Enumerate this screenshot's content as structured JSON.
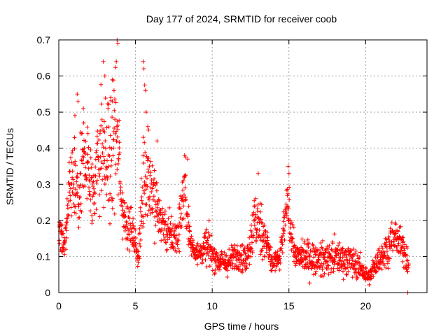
{
  "chart_data": {
    "type": "scatter",
    "title": "Day 177 of 2024, SRMTID for receiver coob",
    "xlabel": "GPS time / hours",
    "ylabel": "SRMTID / TECUs",
    "xlim": [
      0,
      24
    ],
    "ylim": [
      0,
      0.7
    ],
    "xticks": [
      0,
      5,
      10,
      15,
      20
    ],
    "yticks": [
      0,
      0.1,
      0.2,
      0.3,
      0.4,
      0.5,
      0.6,
      0.7
    ],
    "grid": true,
    "marker": "+",
    "series": [
      {
        "name": "SRMTID",
        "color": "#ff0000",
        "profile": [
          [
            0.0,
            0.18,
            0.06
          ],
          [
            0.4,
            0.13,
            0.05
          ],
          [
            0.8,
            0.32,
            0.1
          ],
          [
            1.3,
            0.25,
            0.1
          ],
          [
            1.7,
            0.4,
            0.12
          ],
          [
            2.2,
            0.27,
            0.1
          ],
          [
            2.7,
            0.4,
            0.15
          ],
          [
            3.3,
            0.35,
            0.15
          ],
          [
            3.7,
            0.45,
            0.18
          ],
          [
            4.2,
            0.22,
            0.06
          ],
          [
            4.7,
            0.18,
            0.05
          ],
          [
            5.2,
            0.1,
            0.04
          ],
          [
            5.6,
            0.35,
            0.15
          ],
          [
            6.0,
            0.3,
            0.1
          ],
          [
            6.5,
            0.22,
            0.08
          ],
          [
            7.0,
            0.17,
            0.05
          ],
          [
            7.7,
            0.15,
            0.05
          ],
          [
            8.2,
            0.3,
            0.08
          ],
          [
            8.6,
            0.13,
            0.04
          ],
          [
            9.2,
            0.11,
            0.03
          ],
          [
            9.7,
            0.13,
            0.05
          ],
          [
            10.3,
            0.09,
            0.03
          ],
          [
            11.0,
            0.08,
            0.03
          ],
          [
            11.7,
            0.11,
            0.04
          ],
          [
            12.2,
            0.09,
            0.03
          ],
          [
            12.8,
            0.2,
            0.08
          ],
          [
            13.4,
            0.16,
            0.06
          ],
          [
            13.9,
            0.08,
            0.03
          ],
          [
            14.4,
            0.09,
            0.03
          ],
          [
            14.9,
            0.25,
            0.06
          ],
          [
            15.4,
            0.1,
            0.03
          ],
          [
            16.0,
            0.1,
            0.04
          ],
          [
            17.0,
            0.09,
            0.04
          ],
          [
            18.0,
            0.1,
            0.04
          ],
          [
            19.0,
            0.09,
            0.04
          ],
          [
            19.6,
            0.07,
            0.03
          ],
          [
            20.2,
            0.04,
            0.02
          ],
          [
            20.8,
            0.09,
            0.03
          ],
          [
            21.4,
            0.12,
            0.04
          ],
          [
            21.9,
            0.16,
            0.04
          ],
          [
            22.4,
            0.12,
            0.04
          ],
          [
            22.8,
            0.09,
            0.04
          ]
        ],
        "highlights": [
          [
            1.2,
            0.55
          ],
          [
            1.25,
            0.53
          ],
          [
            1.6,
            0.51
          ],
          [
            1.05,
            0.49
          ],
          [
            2.9,
            0.64
          ],
          [
            3.0,
            0.6
          ],
          [
            3.5,
            0.59
          ],
          [
            3.8,
            0.7
          ],
          [
            3.85,
            0.69
          ],
          [
            3.75,
            0.64
          ],
          [
            3.6,
            0.56
          ],
          [
            5.5,
            0.64
          ],
          [
            5.55,
            0.62
          ],
          [
            5.6,
            0.575
          ],
          [
            5.65,
            0.56
          ],
          [
            5.7,
            0.5
          ],
          [
            5.8,
            0.46
          ],
          [
            5.85,
            0.45
          ],
          [
            6.4,
            0.42
          ],
          [
            8.2,
            0.38
          ],
          [
            8.4,
            0.37
          ],
          [
            13.0,
            0.33
          ],
          [
            14.95,
            0.35
          ],
          [
            15.0,
            0.33
          ],
          [
            22.75,
            0.0
          ]
        ]
      }
    ]
  }
}
